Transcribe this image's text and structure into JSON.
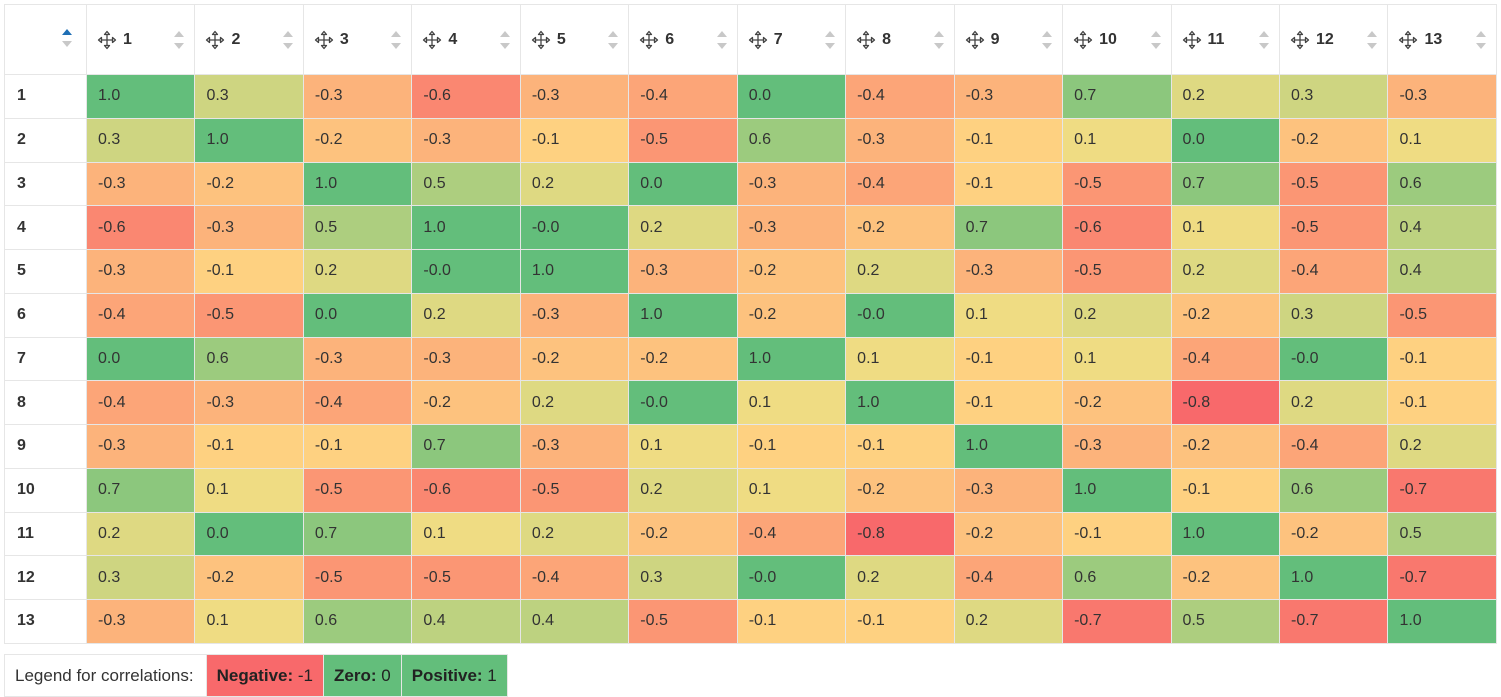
{
  "columns": [
    "1",
    "2",
    "3",
    "4",
    "5",
    "6",
    "7",
    "8",
    "9",
    "10",
    "11",
    "12",
    "13"
  ],
  "rows": [
    {
      "label": "1",
      "cells": [
        "1.0",
        "0.3",
        "-0.3",
        "-0.6",
        "-0.3",
        "-0.4",
        "0.0",
        "-0.4",
        "-0.3",
        "0.7",
        "0.2",
        "0.3",
        "-0.3"
      ]
    },
    {
      "label": "2",
      "cells": [
        "0.3",
        "1.0",
        "-0.2",
        "-0.3",
        "-0.1",
        "-0.5",
        "0.6",
        "-0.3",
        "-0.1",
        "0.1",
        "0.0",
        "-0.2",
        "0.1"
      ]
    },
    {
      "label": "3",
      "cells": [
        "-0.3",
        "-0.2",
        "1.0",
        "0.5",
        "0.2",
        "0.0",
        "-0.3",
        "-0.4",
        "-0.1",
        "-0.5",
        "0.7",
        "-0.5",
        "0.6"
      ]
    },
    {
      "label": "4",
      "cells": [
        "-0.6",
        "-0.3",
        "0.5",
        "1.0",
        "-0.0",
        "0.2",
        "-0.3",
        "-0.2",
        "0.7",
        "-0.6",
        "0.1",
        "-0.5",
        "0.4"
      ]
    },
    {
      "label": "5",
      "cells": [
        "-0.3",
        "-0.1",
        "0.2",
        "-0.0",
        "1.0",
        "-0.3",
        "-0.2",
        "0.2",
        "-0.3",
        "-0.5",
        "0.2",
        "-0.4",
        "0.4"
      ]
    },
    {
      "label": "6",
      "cells": [
        "-0.4",
        "-0.5",
        "0.0",
        "0.2",
        "-0.3",
        "1.0",
        "-0.2",
        "-0.0",
        "0.1",
        "0.2",
        "-0.2",
        "0.3",
        "-0.5"
      ]
    },
    {
      "label": "7",
      "cells": [
        "0.0",
        "0.6",
        "-0.3",
        "-0.3",
        "-0.2",
        "-0.2",
        "1.0",
        "0.1",
        "-0.1",
        "0.1",
        "-0.4",
        "-0.0",
        "-0.1"
      ]
    },
    {
      "label": "8",
      "cells": [
        "-0.4",
        "-0.3",
        "-0.4",
        "-0.2",
        "0.2",
        "-0.0",
        "0.1",
        "1.0",
        "-0.1",
        "-0.2",
        "-0.8",
        "0.2",
        "-0.1"
      ]
    },
    {
      "label": "9",
      "cells": [
        "-0.3",
        "-0.1",
        "-0.1",
        "0.7",
        "-0.3",
        "0.1",
        "-0.1",
        "-0.1",
        "1.0",
        "-0.3",
        "-0.2",
        "-0.4",
        "0.2"
      ]
    },
    {
      "label": "10",
      "cells": [
        "0.7",
        "0.1",
        "-0.5",
        "-0.6",
        "-0.5",
        "0.2",
        "0.1",
        "-0.2",
        "-0.3",
        "1.0",
        "-0.1",
        "0.6",
        "-0.7"
      ]
    },
    {
      "label": "11",
      "cells": [
        "0.2",
        "0.0",
        "0.7",
        "0.1",
        "0.2",
        "-0.2",
        "-0.4",
        "-0.8",
        "-0.2",
        "-0.1",
        "1.0",
        "-0.2",
        "0.5"
      ]
    },
    {
      "label": "12",
      "cells": [
        "0.3",
        "-0.2",
        "-0.5",
        "-0.5",
        "-0.4",
        "0.3",
        "-0.0",
        "0.2",
        "-0.4",
        "0.6",
        "-0.2",
        "1.0",
        "-0.7"
      ]
    },
    {
      "label": "13",
      "cells": [
        "-0.3",
        "0.1",
        "0.6",
        "0.4",
        "0.4",
        "-0.5",
        "-0.1",
        "-0.1",
        "0.2",
        "-0.7",
        "0.5",
        "-0.7",
        "1.0"
      ]
    }
  ],
  "legend": {
    "label": "Legend for correlations:",
    "negative": {
      "name": "Negative:",
      "value": "-1",
      "color": "#f8696b"
    },
    "zero": {
      "name": "Zero:",
      "value": "0",
      "color": "#63be7b"
    },
    "positive": {
      "name": "Positive:",
      "value": "1",
      "color": "#63be7b"
    }
  },
  "colors": {
    "strong_neg": "#f8696b",
    "mid": "#ffe084",
    "zero_and_one": "#63be7b",
    "light_pos": "#dce483",
    "sort_active": "#1f6fb5",
    "sort_inactive": "#c8c8c8"
  },
  "icons": {
    "column_move": "move-arrows-icon",
    "sort": "sort-arrows-icon"
  }
}
